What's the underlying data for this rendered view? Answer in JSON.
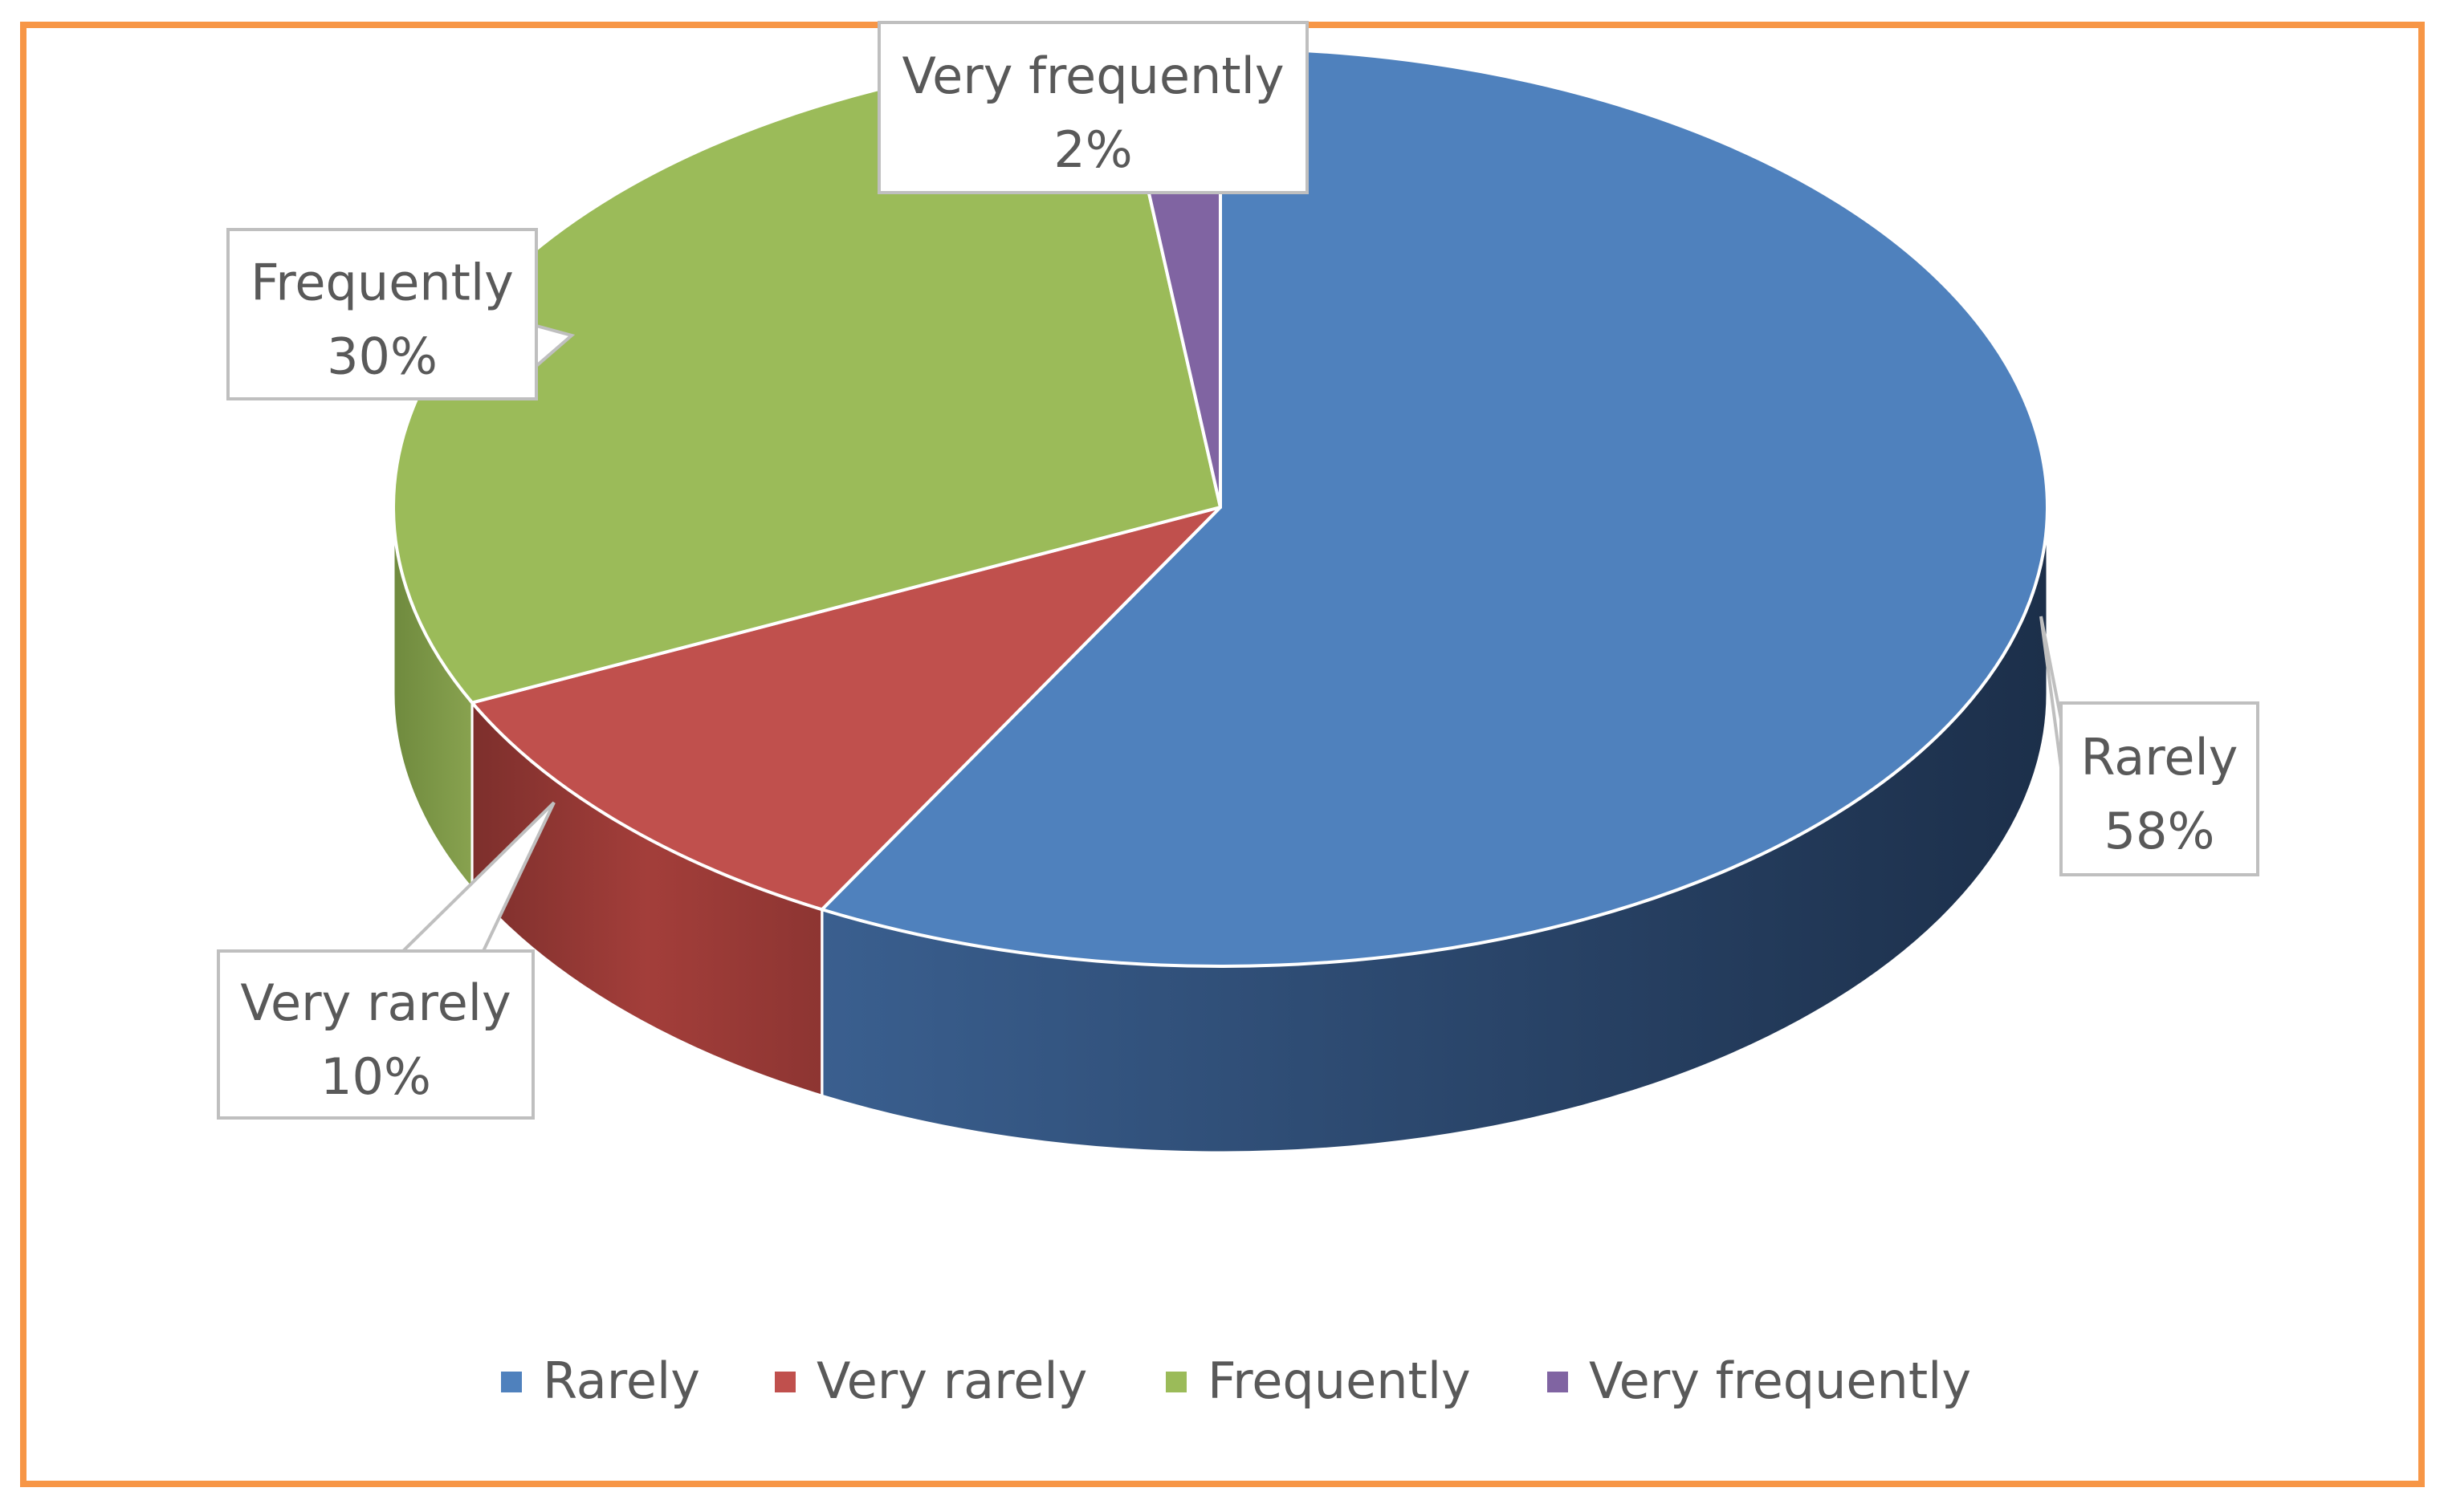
{
  "chart_data": {
    "type": "pie",
    "style": "3d-pie",
    "title": "",
    "categories": [
      "Rarely",
      "Very rarely",
      "Frequently",
      "Very frequently"
    ],
    "values": [
      58,
      10,
      30,
      2
    ],
    "unit": "%",
    "data_labels": [
      {
        "name": "Rarely",
        "value": "58%"
      },
      {
        "name": "Very rarely",
        "value": "10%"
      },
      {
        "name": "Frequently",
        "value": "30%"
      },
      {
        "name": "Very frequently",
        "value": "2%"
      }
    ],
    "colors": [
      "#4f81bd",
      "#c0504d",
      "#9bbb59",
      "#8064a2"
    ],
    "legend": {
      "position": "bottom",
      "entries": [
        "Rarely",
        "Very rarely",
        "Frequently",
        "Very frequently"
      ]
    },
    "frame_color": "#f79646"
  }
}
